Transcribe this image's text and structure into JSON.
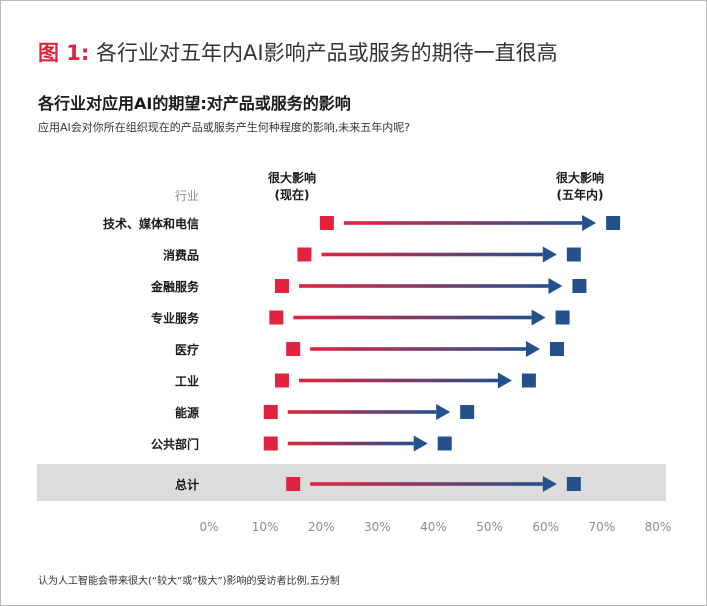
{
  "figure": {
    "number_label": "图 1:",
    "title": "各行业对五年内AI影响产品或服务的期待一直很高"
  },
  "chart": {
    "heading": "各行业对应用AI的期望:对产品或服务的影响",
    "subheading": "应用AI会对你所在组织现在的产品或服务产生何种程度的影响,未来五年内呢?",
    "legend": {
      "current": {
        "line1": "很大影响",
        "line2": "(现在)"
      },
      "future": {
        "line1": "很大影响",
        "line2": "(五年内)"
      }
    }
  },
  "footnote": "认为人工智能会带来很大(“较大”或“极大”)影响的受访者比例,五分制",
  "colors": {
    "current": "#e0243f",
    "future": "#24508c",
    "total_band": "#dcdcdc",
    "axis_text": "#8c8c8c",
    "header_text": "#8c8c8c"
  },
  "chart_data": {
    "type": "dumbbell",
    "category_header": "行业",
    "xlim": [
      0,
      80
    ],
    "x_ticks": [
      "0%",
      "10%",
      "20%",
      "30%",
      "40%",
      "50%",
      "60%",
      "70%",
      "80%"
    ],
    "grid": false,
    "series": [
      {
        "name": "很大影响(现在)",
        "marker": "square",
        "color": "#e0243f"
      },
      {
        "name": "很大影响(五年内)",
        "marker": "square",
        "color": "#24508c"
      }
    ],
    "rows": [
      {
        "category": "技术、媒体和电信",
        "current": 21,
        "future": 72
      },
      {
        "category": "消费品",
        "current": 17,
        "future": 65
      },
      {
        "category": "金融服务",
        "current": 13,
        "future": 66
      },
      {
        "category": "专业服务",
        "current": 12,
        "future": 63
      },
      {
        "category": "医疗",
        "current": 15,
        "future": 62
      },
      {
        "category": "工业",
        "current": 13,
        "future": 57
      },
      {
        "category": "能源",
        "current": 11,
        "future": 46
      },
      {
        "category": "公共部门",
        "current": 11,
        "future": 42
      },
      {
        "category": "总计",
        "current": 15,
        "future": 65,
        "highlight": true
      }
    ]
  }
}
